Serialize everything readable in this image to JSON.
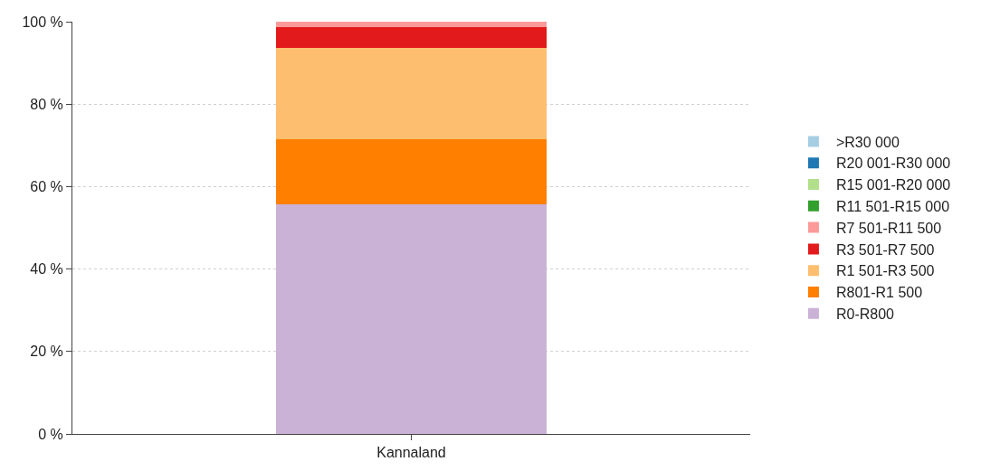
{
  "chart_data": {
    "type": "bar",
    "stacked": true,
    "categories": [
      "Kannaland"
    ],
    "ylim": [
      0,
      100
    ],
    "yticks": [
      {
        "value": 0,
        "label": "0 %"
      },
      {
        "value": 20,
        "label": "20 %"
      },
      {
        "value": 40,
        "label": "40 %"
      },
      {
        "value": 60,
        "label": "60 %"
      },
      {
        "value": 80,
        "label": "80 %"
      },
      {
        "value": 100,
        "label": "100 %"
      }
    ],
    "grid": "y",
    "legend": "right",
    "series": [
      {
        "name": "R0-R800",
        "color": "#cab2d6",
        "values": [
          55.7
        ]
      },
      {
        "name": "R801-R1 500",
        "color": "#ff7f00",
        "values": [
          15.8
        ]
      },
      {
        "name": "R1 501-R3 500",
        "color": "#fdbf6f",
        "values": [
          22.2
        ]
      },
      {
        "name": "R3 501-R7 500",
        "color": "#e31a1c",
        "values": [
          5.0
        ]
      },
      {
        "name": "R7 501-R11 500",
        "color": "#fb9a99",
        "values": [
          1.3
        ]
      },
      {
        "name": "R11 501-R15 000",
        "color": "#33a02c",
        "values": [
          0
        ]
      },
      {
        "name": "R15 001-R20 000",
        "color": "#b2df8a",
        "values": [
          0
        ]
      },
      {
        "name": "R20 001-R30 000",
        "color": "#1f78b4",
        "values": [
          0
        ]
      },
      {
        "name": ">R30 000",
        "color": "#a6cee3",
        "values": [
          0
        ]
      }
    ]
  }
}
